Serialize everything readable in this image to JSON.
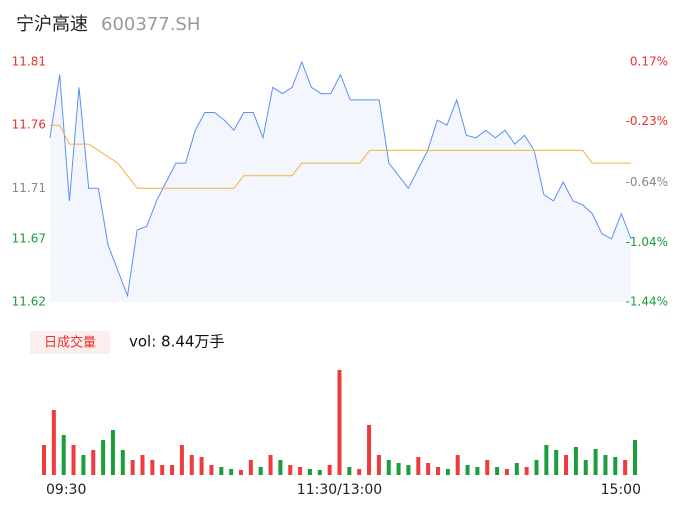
{
  "header": {
    "name": "宁沪高速",
    "code": "600377.SH"
  },
  "chart_data": [
    {
      "type": "line",
      "x": [
        0,
        4,
        8,
        12,
        16,
        20,
        24,
        28,
        32,
        36,
        40,
        44,
        48,
        52,
        56,
        60,
        64,
        68,
        72,
        76,
        80,
        84,
        88,
        92,
        96,
        100,
        104,
        108,
        112,
        116,
        120,
        124,
        128,
        132,
        136,
        140,
        144,
        148,
        152,
        156,
        160,
        164,
        168,
        172,
        176,
        180,
        184,
        188,
        192,
        196,
        200,
        204,
        208,
        212,
        216,
        220,
        224,
        228,
        232,
        236,
        240
      ],
      "xlim": [
        0,
        240
      ],
      "ylim": [
        11.62,
        11.81
      ],
      "yticks": [
        11.81,
        11.76,
        11.71,
        11.67,
        11.62
      ],
      "y2lim": [
        -1.44,
        0.17
      ],
      "y2ticks": [
        {
          "value": 0.17,
          "label": "0.17%"
        },
        {
          "value": -0.23,
          "label": "-0.23%"
        },
        {
          "value": -0.64,
          "label": "-0.64%"
        },
        {
          "value": -1.04,
          "label": "-1.04%"
        },
        {
          "value": -1.44,
          "label": "-1.44%"
        }
      ],
      "ytick_colors": [
        "#e8322f",
        "#e8322f",
        "#888888",
        "#1a9e3a",
        "#1a9e3a"
      ],
      "series": [
        {
          "color": "#5b8ff9",
          "fill": "#f3f6fc",
          "values": [
            11.75,
            11.8,
            11.7,
            11.79,
            11.71,
            11.71,
            11.665,
            11.645,
            11.625,
            11.677,
            11.68,
            11.7,
            11.715,
            11.73,
            11.73,
            11.756,
            11.77,
            11.77,
            11.764,
            11.756,
            11.77,
            11.77,
            11.75,
            11.79,
            11.785,
            11.79,
            11.81,
            11.79,
            11.785,
            11.785,
            11.8,
            11.78,
            11.78,
            11.78,
            11.78,
            11.73,
            11.72,
            11.71,
            11.725,
            11.74,
            11.764,
            11.76,
            11.78,
            11.752,
            11.75,
            11.756,
            11.75,
            11.756,
            11.745,
            11.752,
            11.74,
            11.705,
            11.7,
            11.715,
            11.7,
            11.697,
            11.69,
            11.674,
            11.67,
            11.69,
            11.67
          ]
        },
        {
          "color": "#f6b13d",
          "values": [
            11.76,
            11.76,
            11.745,
            11.745,
            11.745,
            11.74,
            11.735,
            11.73,
            11.72,
            11.71,
            11.71,
            11.71,
            11.71,
            11.71,
            11.71,
            11.71,
            11.71,
            11.71,
            11.71,
            11.71,
            11.72,
            11.72,
            11.72,
            11.72,
            11.72,
            11.72,
            11.73,
            11.73,
            11.73,
            11.73,
            11.73,
            11.73,
            11.73,
            11.74,
            11.74,
            11.74,
            11.74,
            11.74,
            11.74,
            11.74,
            11.74,
            11.74,
            11.74,
            11.74,
            11.74,
            11.74,
            11.74,
            11.74,
            11.74,
            11.74,
            11.74,
            11.74,
            11.74,
            11.74,
            11.74,
            11.74,
            11.73,
            11.73,
            11.73,
            11.73,
            11.73
          ]
        }
      ]
    },
    {
      "type": "bar",
      "title": "日成交量",
      "subtitle": "vol: 8.44万手",
      "x": [
        0,
        4,
        8,
        12,
        16,
        20,
        24,
        28,
        32,
        36,
        40,
        44,
        48,
        52,
        56,
        60,
        64,
        68,
        72,
        76,
        80,
        84,
        88,
        92,
        96,
        100,
        104,
        108,
        112,
        116,
        120,
        124,
        128,
        132,
        136,
        140,
        144,
        148,
        152,
        156,
        160,
        164,
        168,
        172,
        176,
        180,
        184,
        188,
        192,
        196,
        200,
        204,
        208,
        212,
        216,
        220,
        224,
        228,
        232,
        236,
        240
      ],
      "xlim": [
        0,
        240
      ],
      "ylim": [
        0,
        1100
      ],
      "xticks": [
        {
          "value": 0,
          "label": "09:30"
        },
        {
          "value": 120,
          "label": "11:30/13:00"
        },
        {
          "value": 240,
          "label": "15:00"
        }
      ],
      "up_color": "#ee3b3b",
      "down_color": "#1a9e3a",
      "values": [
        300,
        650,
        400,
        300,
        200,
        250,
        350,
        450,
        250,
        150,
        200,
        150,
        100,
        100,
        300,
        200,
        180,
        100,
        80,
        60,
        50,
        150,
        80,
        200,
        150,
        100,
        80,
        60,
        50,
        100,
        1050,
        80,
        60,
        500,
        200,
        150,
        120,
        100,
        180,
        120,
        80,
        60,
        200,
        100,
        80,
        150,
        80,
        60,
        120,
        80,
        150,
        300,
        250,
        200,
        280,
        150,
        260,
        200,
        180,
        150,
        350
      ]
    }
  ]
}
